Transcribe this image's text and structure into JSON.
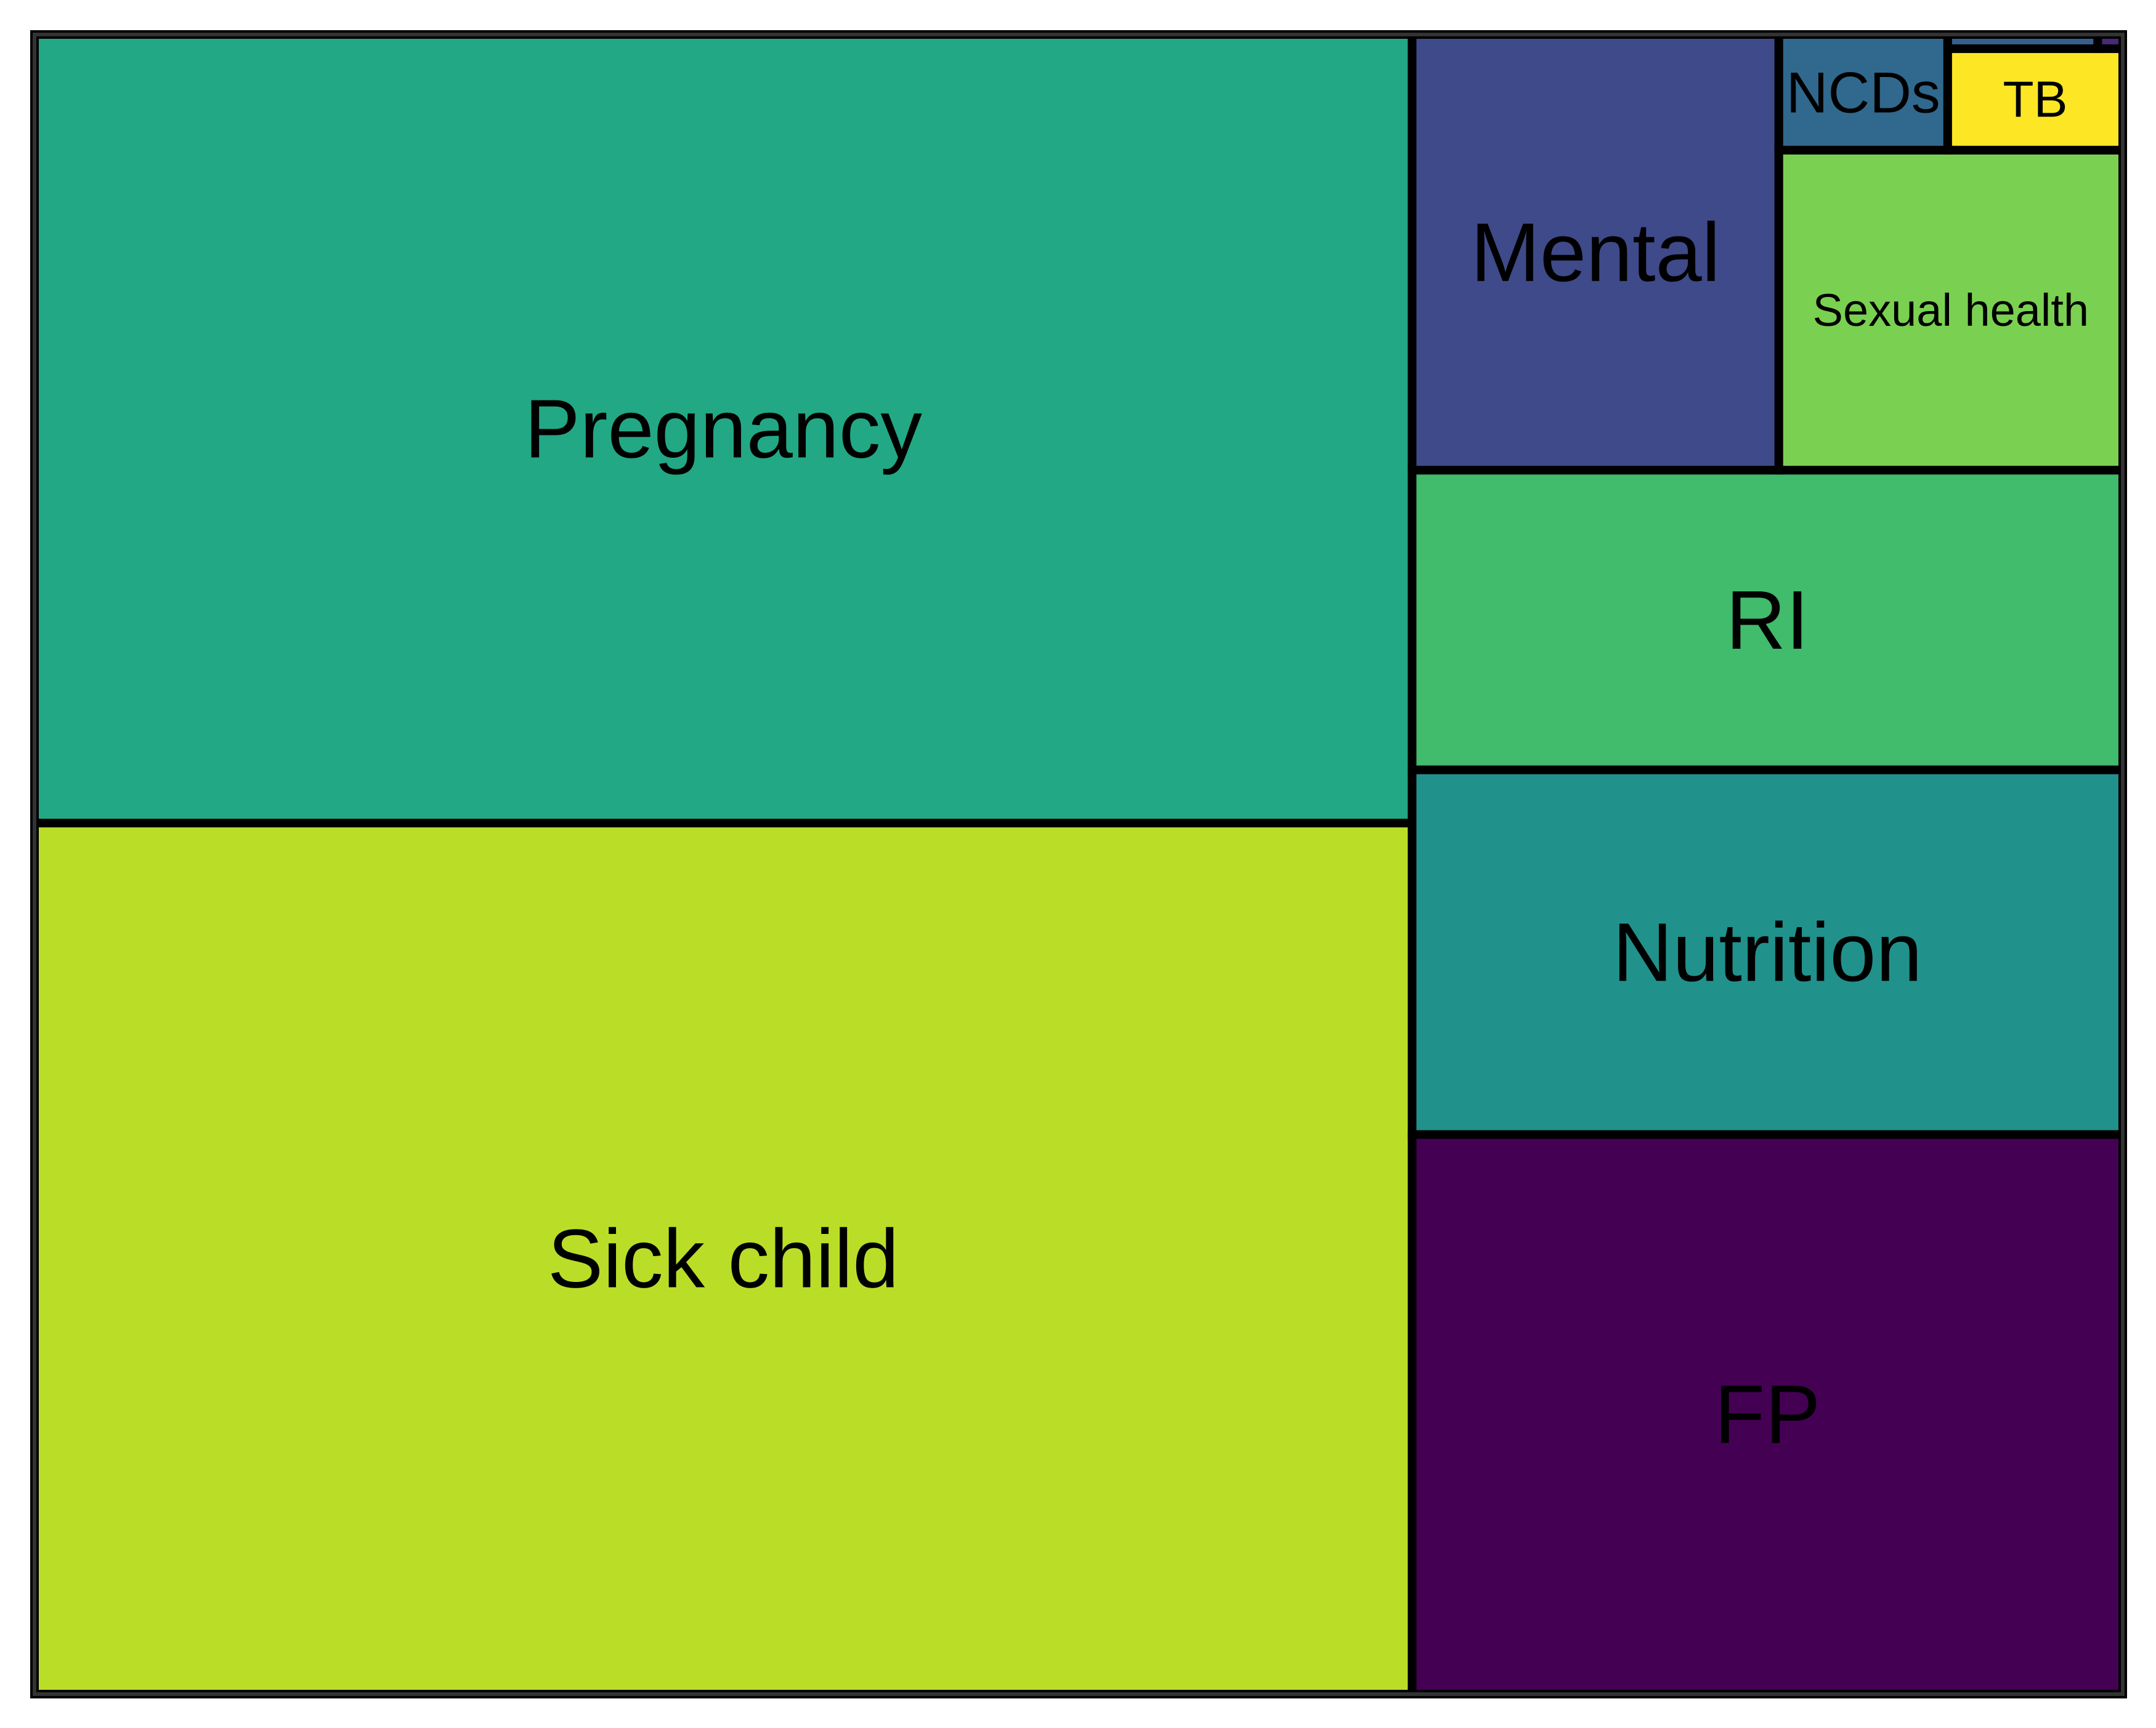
{
  "chart_data": {
    "type": "treemap",
    "title": "",
    "items": [
      {
        "label": "Pregnancy",
        "value": 30.6,
        "color": "#22a884"
      },
      {
        "label": "Sick child",
        "value": 33.8,
        "color": "#bade28"
      },
      {
        "label": "FP",
        "value": 11.2,
        "color": "#440154"
      },
      {
        "label": "Nutrition",
        "value": 7.3,
        "color": "#21918c"
      },
      {
        "label": "RI",
        "value": 6.0,
        "color": "#41bb6c"
      },
      {
        "label": "Mental",
        "value": 4.5,
        "color": "#3e4a89"
      },
      {
        "label": "Sexual health",
        "value": 3.1,
        "color": "#7ad151"
      },
      {
        "label": "NCDs",
        "value": 0.55,
        "color": "#31688e"
      },
      {
        "label": "TB",
        "value": 0.5,
        "color": "#fde725"
      },
      {
        "label": "",
        "value": 0.06,
        "color": "#35608d"
      },
      {
        "label": "",
        "value": 0.01,
        "color": "#482878"
      }
    ]
  }
}
